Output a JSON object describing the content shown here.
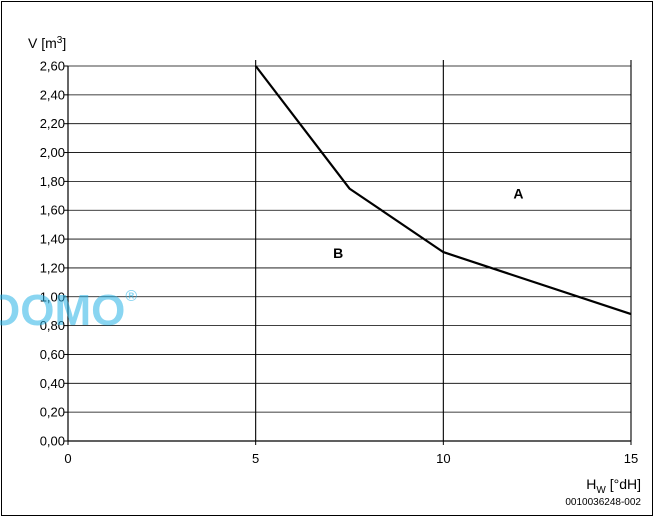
{
  "chart_data": {
    "type": "line",
    "title": "",
    "xlabel_main": "H",
    "xlabel_sub": "W",
    "xlabel_unit": " [°dH]",
    "ylabel_main": "V [m",
    "ylabel_sup": "3",
    "ylabel_end": "]",
    "xlim": [
      0,
      15
    ],
    "ylim": [
      0,
      2.6
    ],
    "x_ticks": [
      0,
      5,
      10,
      15
    ],
    "x_tick_labels": [
      "0",
      "5",
      "10",
      "15"
    ],
    "y_ticks": [
      0,
      0.2,
      0.4,
      0.6,
      0.8,
      1.0,
      1.2,
      1.4,
      1.6,
      1.8,
      2.0,
      2.2,
      2.4,
      2.6
    ],
    "y_tick_labels": [
      "0,00",
      "0,20",
      "0,40",
      "0,60",
      "0,80",
      "1,00",
      "1,20",
      "1,40",
      "1,60",
      "1,80",
      "2,00",
      "2,20",
      "2,40",
      "2,60"
    ],
    "grid": {
      "horizontal": true,
      "vertical_at": [
        5,
        10,
        15
      ]
    },
    "series": [
      {
        "x": [
          5,
          7.5,
          10,
          15
        ],
        "y": [
          2.6,
          1.75,
          1.31,
          0.88
        ],
        "color": "#000000"
      }
    ],
    "annotations": [
      {
        "text": "A",
        "x": 12,
        "y": 1.68
      },
      {
        "text": "B",
        "x": 7.2,
        "y": 1.27
      }
    ]
  },
  "document_id": "0010036248-002",
  "watermark": {
    "text": "OOMO",
    "symbol": "®",
    "color": "#2ab3e6"
  }
}
